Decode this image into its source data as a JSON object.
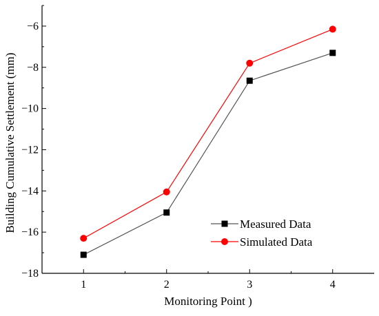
{
  "chart_data": {
    "type": "line",
    "title": "",
    "xlabel": "Monitoring Point )",
    "ylabel": "Building Cumulative Settlement (mm)",
    "x": [
      1,
      2,
      3,
      4
    ],
    "xticks": [
      1,
      2,
      3,
      4
    ],
    "xlim": [
      0.5,
      4.5
    ],
    "ylim": [
      -18,
      -5
    ],
    "yticks": [
      -18,
      -16,
      -14,
      -12,
      -10,
      -8,
      -6
    ],
    "grid": false,
    "legend_position": "lower-right",
    "series": [
      {
        "name": "Measured Data",
        "values": [
          -17.1,
          -15.05,
          -8.65,
          -7.3
        ],
        "color": "#000000",
        "marker": "square",
        "line_color": "#555555"
      },
      {
        "name": "Simulated Data",
        "values": [
          -16.3,
          -14.05,
          -7.8,
          -6.15
        ],
        "color": "#ff0000",
        "marker": "circle",
        "line_color": "#ff0000"
      }
    ]
  }
}
